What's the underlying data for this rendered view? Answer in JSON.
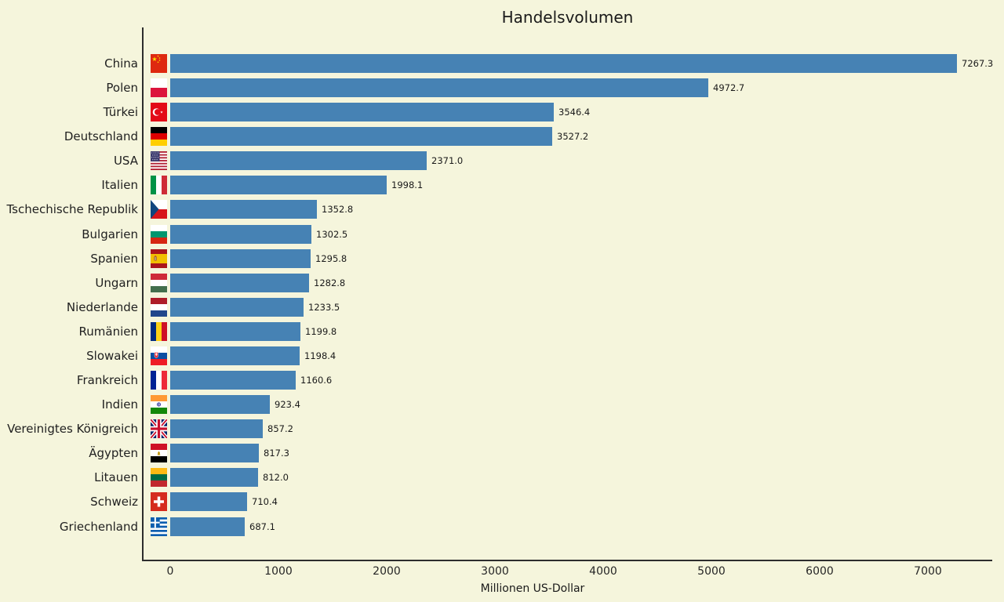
{
  "chart_data": {
    "type": "bar",
    "orientation": "horizontal",
    "title": "Handelsvolumen",
    "xlabel": "Millionen US-Dollar",
    "categories": [
      "China",
      "Polen",
      "Türkei",
      "Deutschland",
      "USA",
      "Italien",
      "Tschechische Republik",
      "Bulgarien",
      "Spanien",
      "Ungarn",
      "Niederlande",
      "Rumänien",
      "Slowakei",
      "Frankreich",
      "Indien",
      "Vereinigtes Königreich",
      "Ägypten",
      "Litauen",
      "Schweiz",
      "Griechenland"
    ],
    "values": [
      7267.3,
      4972.7,
      3546.4,
      3527.2,
      2371.0,
      1998.1,
      1352.8,
      1302.5,
      1295.8,
      1282.8,
      1233.5,
      1199.8,
      1198.4,
      1160.6,
      923.4,
      857.2,
      817.3,
      812.0,
      710.4,
      687.1
    ],
    "flags": [
      "china",
      "poland",
      "turkey",
      "germany",
      "usa",
      "italy",
      "czech-republic",
      "bulgaria",
      "spain",
      "hungary",
      "netherlands",
      "romania",
      "slovakia",
      "france",
      "india",
      "united-kingdom",
      "egypt",
      "lithuania",
      "switzerland",
      "greece"
    ],
    "x_ticks": [
      0,
      1000,
      2000,
      3000,
      4000,
      5000,
      6000,
      7000
    ],
    "xlim": [
      0,
      7000
    ],
    "grid": false,
    "legend": false,
    "value_labels_shown": true,
    "colors": {
      "bar": "#4682b4",
      "background": "#f5f5dc",
      "axis": "#2d2d2d",
      "text": "#1a1a1a"
    }
  }
}
